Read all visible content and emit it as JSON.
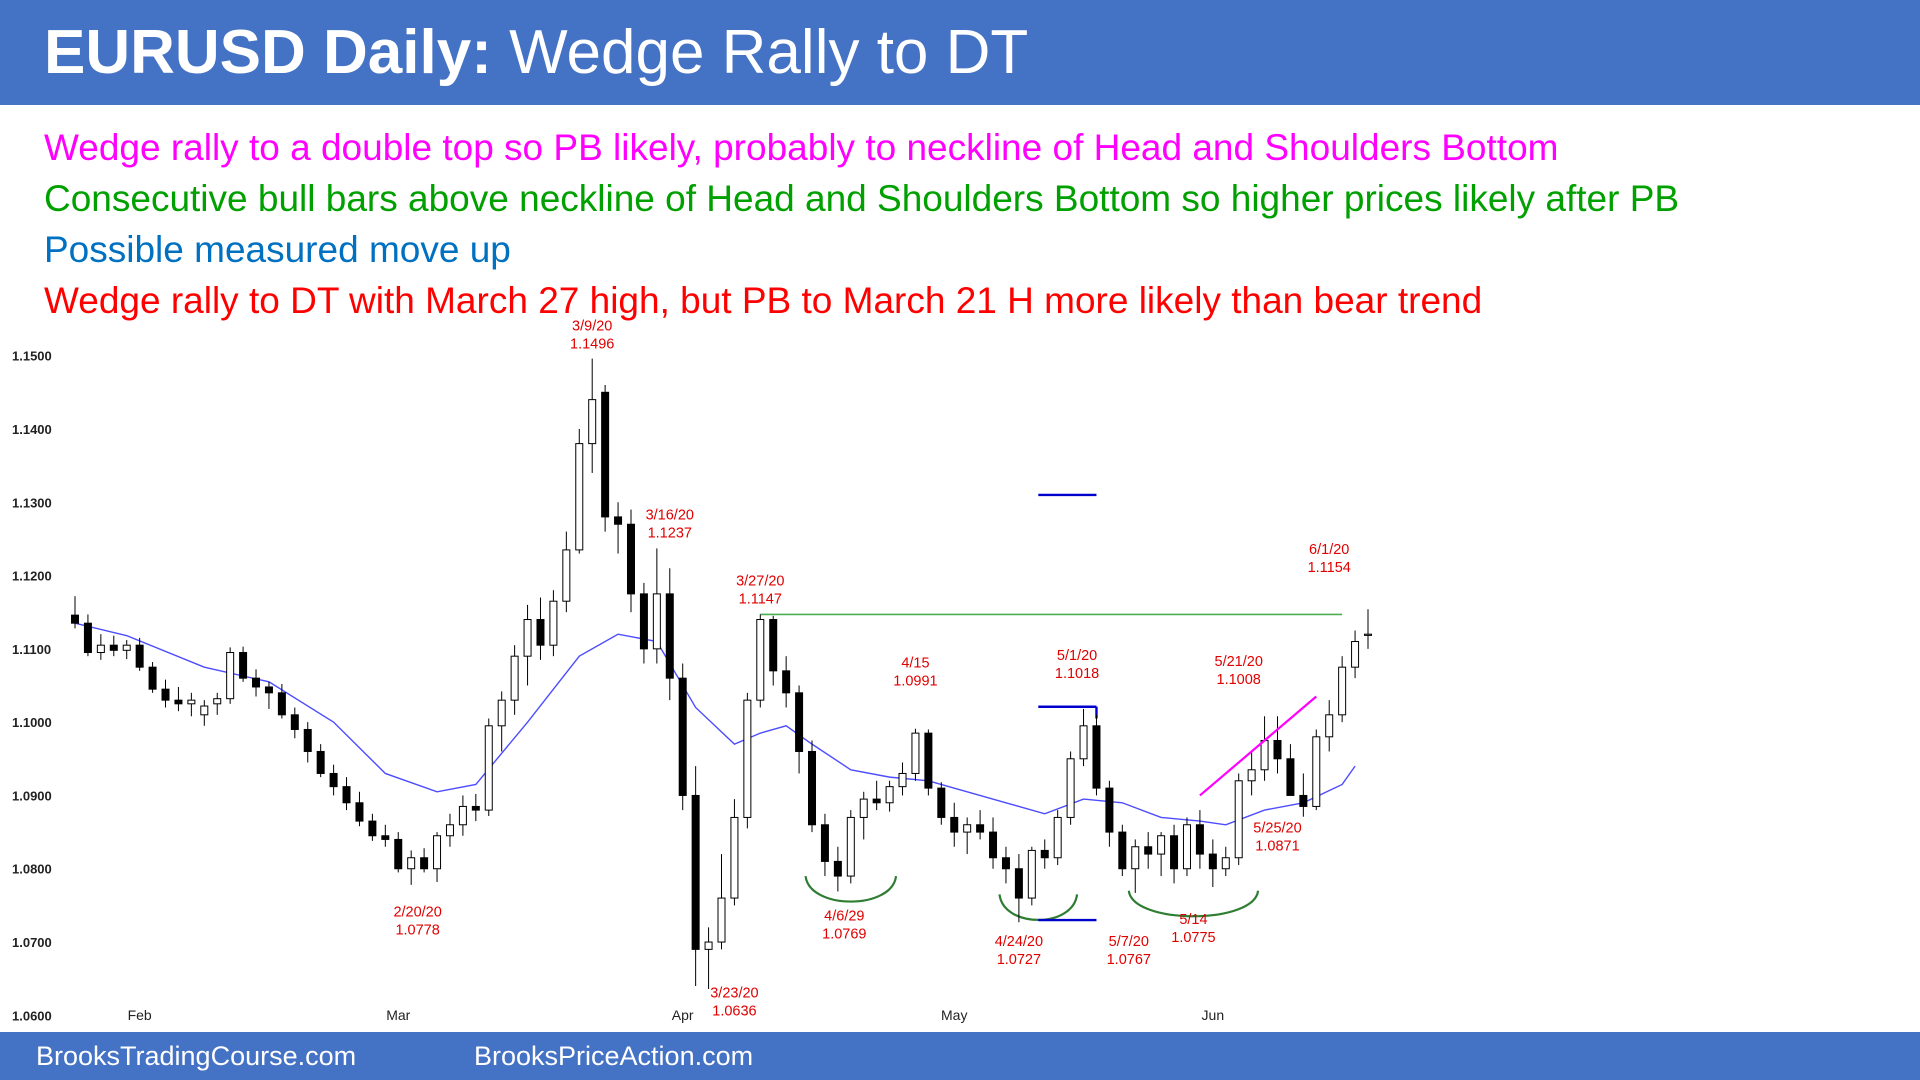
{
  "header": {
    "title_bold": "EURUSD Daily:",
    "title_rest": "Wedge Rally to DT"
  },
  "notes": [
    {
      "text": "Wedge rally to a double top so PB likely, probably to neckline of Head and Shoulders Bottom",
      "color": "#ff00ff"
    },
    {
      "text": "Consecutive bull bars above neckline of Head and Shoulders Bottom so higher prices likely after PB",
      "color": "#00a000"
    },
    {
      "text": "Possible measured move up",
      "color": "#0070c0"
    },
    {
      "text": "Wedge rally to DT with March 27 high, but PB to March 21 H more likely than bear trend",
      "color": "#ff0000"
    }
  ],
  "footer": {
    "left": "BrooksTradingCourse.com",
    "right": "BrooksPriceAction.com"
  },
  "chart_data": {
    "type": "candlestick",
    "ylim": [
      1.058,
      1.1535
    ],
    "y_ticks": [
      "1.0600",
      "1.0700",
      "1.0800",
      "1.0900",
      "1.1000",
      "1.1100",
      "1.1200",
      "1.1300",
      "1.1400",
      "1.1500"
    ],
    "x_ticks": [
      {
        "label": "Feb",
        "index": 5
      },
      {
        "label": "Mar",
        "index": 25
      },
      {
        "label": "Apr",
        "index": 47
      },
      {
        "label": "May",
        "index": 68
      },
      {
        "label": "Jun",
        "index": 88
      }
    ],
    "colors": {
      "bull": "#ffffff",
      "bear": "#000000",
      "ema": "#4d4dff",
      "double_top_line": "#4caf50",
      "wedge_line": "#ff00ff",
      "shoulders": "#2e7d32",
      "measured_move": "#0000cc",
      "annotation": "#e00000"
    },
    "candles": [
      [
        1.1146,
        1.1172,
        1.1128,
        1.1135
      ],
      [
        1.1135,
        1.1147,
        1.109,
        1.1095
      ],
      [
        1.1095,
        1.112,
        1.1085,
        1.1105
      ],
      [
        1.1105,
        1.1118,
        1.109,
        1.1098
      ],
      [
        1.1098,
        1.1112,
        1.1086,
        1.1105
      ],
      [
        1.1105,
        1.1115,
        1.107,
        1.1075
      ],
      [
        1.1075,
        1.1082,
        1.104,
        1.1045
      ],
      [
        1.1045,
        1.1058,
        1.102,
        1.103
      ],
      [
        1.103,
        1.1048,
        1.1015,
        1.1025
      ],
      [
        1.1025,
        1.104,
        1.1008,
        1.103
      ],
      [
        1.101,
        1.103,
        1.0995,
        1.1022
      ],
      [
        1.1025,
        1.104,
        1.101,
        1.1032
      ],
      [
        1.1032,
        1.1102,
        1.1025,
        1.1095
      ],
      [
        1.1095,
        1.1103,
        1.1055,
        1.106
      ],
      [
        1.106,
        1.1072,
        1.1035,
        1.1048
      ],
      [
        1.1048,
        1.1055,
        1.1018,
        1.104
      ],
      [
        1.104,
        1.1052,
        1.1005,
        1.101
      ],
      [
        1.101,
        1.102,
        1.0978,
        1.099
      ],
      [
        1.099,
        1.1,
        1.0945,
        1.096
      ],
      [
        1.096,
        1.097,
        1.0925,
        1.093
      ],
      [
        1.093,
        1.0942,
        1.09,
        1.0912
      ],
      [
        1.0912,
        1.0925,
        1.088,
        1.089
      ],
      [
        1.089,
        1.0905,
        1.0858,
        1.0865
      ],
      [
        1.0865,
        1.0875,
        1.0838,
        1.0845
      ],
      [
        1.0845,
        1.086,
        1.083,
        1.084
      ],
      [
        1.084,
        1.085,
        1.0795,
        1.08
      ],
      [
        1.08,
        1.0825,
        1.0778,
        1.0815
      ],
      [
        1.0815,
        1.0828,
        1.0795,
        1.08
      ],
      [
        1.08,
        1.085,
        1.0782,
        1.0845
      ],
      [
        1.0845,
        1.0875,
        1.083,
        1.086
      ],
      [
        1.086,
        1.09,
        1.0845,
        1.0885
      ],
      [
        1.0885,
        1.0902,
        1.0865,
        1.088
      ],
      [
        1.088,
        1.1005,
        1.0872,
        1.0995
      ],
      [
        1.0995,
        1.1042,
        1.096,
        1.103
      ],
      [
        1.103,
        1.1105,
        1.101,
        1.109
      ],
      [
        1.109,
        1.116,
        1.105,
        1.114
      ],
      [
        1.114,
        1.117,
        1.1085,
        1.1105
      ],
      [
        1.1105,
        1.118,
        1.109,
        1.1165
      ],
      [
        1.1165,
        1.126,
        1.115,
        1.1235
      ],
      [
        1.1235,
        1.14,
        1.123,
        1.138
      ],
      [
        1.138,
        1.1496,
        1.134,
        1.144
      ],
      [
        1.145,
        1.146,
        1.126,
        1.128
      ],
      [
        1.128,
        1.13,
        1.123,
        1.127
      ],
      [
        1.127,
        1.129,
        1.115,
        1.1175
      ],
      [
        1.1175,
        1.119,
        1.108,
        1.11
      ],
      [
        1.11,
        1.1237,
        1.108,
        1.1175
      ],
      [
        1.1175,
        1.121,
        1.103,
        1.106
      ],
      [
        1.106,
        1.108,
        1.088,
        1.09
      ],
      [
        1.09,
        1.094,
        1.064,
        1.069
      ],
      [
        1.069,
        1.072,
        1.0636,
        1.07
      ],
      [
        1.07,
        1.082,
        1.069,
        1.076
      ],
      [
        1.076,
        1.0895,
        1.075,
        1.087
      ],
      [
        1.087,
        1.104,
        1.0855,
        1.103
      ],
      [
        1.103,
        1.1147,
        1.102,
        1.114
      ],
      [
        1.114,
        1.1145,
        1.105,
        1.107
      ],
      [
        1.107,
        1.109,
        1.102,
        1.104
      ],
      [
        1.104,
        1.105,
        1.093,
        1.096
      ],
      [
        1.096,
        1.0975,
        1.085,
        1.086
      ],
      [
        1.086,
        1.0875,
        1.079,
        1.081
      ],
      [
        1.081,
        1.083,
        1.0769,
        1.079
      ],
      [
        1.079,
        1.088,
        1.078,
        1.087
      ],
      [
        1.087,
        1.0905,
        1.084,
        1.0895
      ],
      [
        1.0895,
        1.092,
        1.088,
        1.089
      ],
      [
        1.089,
        1.092,
        1.0878,
        1.0912
      ],
      [
        1.0912,
        1.0945,
        1.09,
        1.093
      ],
      [
        1.093,
        1.0991,
        1.092,
        1.0985
      ],
      [
        1.0985,
        1.099,
        1.09,
        1.091
      ],
      [
        1.091,
        1.0918,
        1.086,
        1.087
      ],
      [
        1.087,
        1.089,
        1.083,
        1.085
      ],
      [
        1.085,
        1.087,
        1.082,
        1.086
      ],
      [
        1.086,
        1.088,
        1.084,
        1.085
      ],
      [
        1.085,
        1.087,
        1.08,
        1.0815
      ],
      [
        1.0815,
        1.083,
        1.078,
        1.08
      ],
      [
        1.08,
        1.082,
        1.0727,
        1.076
      ],
      [
        1.076,
        1.083,
        1.075,
        1.0825
      ],
      [
        1.0825,
        1.084,
        1.08,
        1.0815
      ],
      [
        1.0815,
        1.088,
        1.0805,
        1.087
      ],
      [
        1.087,
        1.096,
        1.086,
        1.095
      ],
      [
        1.095,
        1.1018,
        1.094,
        1.0995
      ],
      [
        1.0995,
        1.101,
        1.09,
        1.091
      ],
      [
        1.091,
        1.092,
        1.083,
        1.085
      ],
      [
        1.085,
        1.086,
        1.079,
        1.08
      ],
      [
        1.08,
        1.084,
        1.0767,
        1.083
      ],
      [
        1.083,
        1.085,
        1.08,
        1.082
      ],
      [
        1.082,
        1.085,
        1.079,
        1.0845
      ],
      [
        1.0845,
        1.086,
        1.078,
        1.08
      ],
      [
        1.08,
        1.087,
        1.079,
        1.086
      ],
      [
        1.086,
        1.088,
        1.08,
        1.082
      ],
      [
        1.082,
        1.084,
        1.0775,
        1.08
      ],
      [
        1.08,
        1.083,
        1.079,
        1.0815
      ],
      [
        1.0815,
        1.093,
        1.0805,
        1.092
      ],
      [
        1.092,
        1.096,
        1.09,
        1.0935
      ],
      [
        1.0935,
        1.1008,
        1.092,
        1.0975
      ],
      [
        1.0975,
        1.1008,
        1.093,
        1.095
      ],
      [
        1.095,
        1.097,
        1.09,
        1.09
      ],
      [
        1.09,
        1.093,
        1.0871,
        1.0885
      ],
      [
        1.0885,
        1.099,
        1.088,
        1.098
      ],
      [
        1.098,
        1.103,
        1.096,
        1.101
      ],
      [
        1.101,
        1.109,
        1.1,
        1.1075
      ],
      [
        1.1075,
        1.1125,
        1.106,
        1.111
      ],
      [
        1.112,
        1.1154,
        1.11,
        1.112
      ]
    ],
    "ema": [
      [
        0,
        1.1135
      ],
      [
        4,
        1.1118
      ],
      [
        10,
        1.1075
      ],
      [
        15,
        1.1055
      ],
      [
        20,
        1.1
      ],
      [
        24,
        1.093
      ],
      [
        28,
        1.0905
      ],
      [
        31,
        1.0915
      ],
      [
        35,
        1.1
      ],
      [
        39,
        1.109
      ],
      [
        42,
        1.112
      ],
      [
        45,
        1.111
      ],
      [
        48,
        1.102
      ],
      [
        51,
        1.097
      ],
      [
        53,
        1.0985
      ],
      [
        55,
        1.0995
      ],
      [
        57,
        1.097
      ],
      [
        60,
        1.0935
      ],
      [
        63,
        1.0925
      ],
      [
        66,
        1.092
      ],
      [
        69,
        1.0905
      ],
      [
        72,
        1.089
      ],
      [
        75,
        1.0875
      ],
      [
        78,
        1.0895
      ],
      [
        81,
        1.089
      ],
      [
        84,
        1.087
      ],
      [
        87,
        1.0865
      ],
      [
        89,
        1.086
      ],
      [
        92,
        1.088
      ],
      [
        95,
        1.089
      ],
      [
        98,
        1.0915
      ],
      [
        99,
        1.094
      ]
    ],
    "double_top_line": {
      "x1": 53,
      "x2": 98,
      "y": 1.1147
    },
    "wedge_line": {
      "x1": 87,
      "y1": 1.09,
      "x2": 96,
      "y2": 1.1035
    },
    "measured_move_marks": [
      {
        "x1": 74.5,
        "x2": 79,
        "y": 1.1021,
        "drop_to": 1.1005
      },
      {
        "x1": 74.5,
        "x2": 79,
        "y": 1.073
      },
      {
        "x1": 74.5,
        "x2": 79,
        "y": 1.131
      }
    ],
    "shoulder_arcs": [
      {
        "x1": 56.5,
        "x2": 63.5,
        "y": 1.079
      },
      {
        "x1": 71.5,
        "x2": 77.5,
        "y": 1.0765
      },
      {
        "x1": 81.5,
        "x2": 91.5,
        "y": 1.077
      }
    ],
    "annotations": [
      {
        "lines": [
          "3/9/20",
          "1.1496"
        ],
        "x": 40,
        "y": 1.151
      },
      {
        "lines": [
          "3/16/20",
          "1.1237"
        ],
        "x": 46,
        "y": 1.1252
      },
      {
        "lines": [
          "3/27/20",
          "1.1147"
        ],
        "x": 53,
        "y": 1.1162
      },
      {
        "lines": [
          "4/15",
          "1.0991"
        ],
        "x": 65,
        "y": 1.105
      },
      {
        "lines": [
          "5/1/20",
          "1.1018"
        ],
        "x": 77.5,
        "y": 1.106
      },
      {
        "lines": [
          "6/1/20",
          "1.1154"
        ],
        "x": 97,
        "y": 1.1205
      },
      {
        "lines": [
          "5/21/20",
          "1.1008"
        ],
        "x": 90,
        "y": 1.1052
      },
      {
        "lines": [
          "2/20/20",
          "1.0778"
        ],
        "x": 26.5,
        "y": 1.071
      },
      {
        "lines": [
          "3/23/20",
          "1.0636"
        ],
        "x": 51,
        "y": 1.06
      },
      {
        "lines": [
          "4/6/29",
          "1.0769"
        ],
        "x": 59.5,
        "y": 1.0705
      },
      {
        "lines": [
          "4/24/20",
          "1.0727"
        ],
        "x": 73,
        "y": 1.067
      },
      {
        "lines": [
          "5/7/20",
          "1.0767"
        ],
        "x": 81.5,
        "y": 1.067
      },
      {
        "lines": [
          "5/14",
          "1.0775"
        ],
        "x": 86.5,
        "y": 1.07
      },
      {
        "lines": [
          "5/25/20",
          "1.0871"
        ],
        "x": 93,
        "y": 1.0825
      }
    ]
  }
}
